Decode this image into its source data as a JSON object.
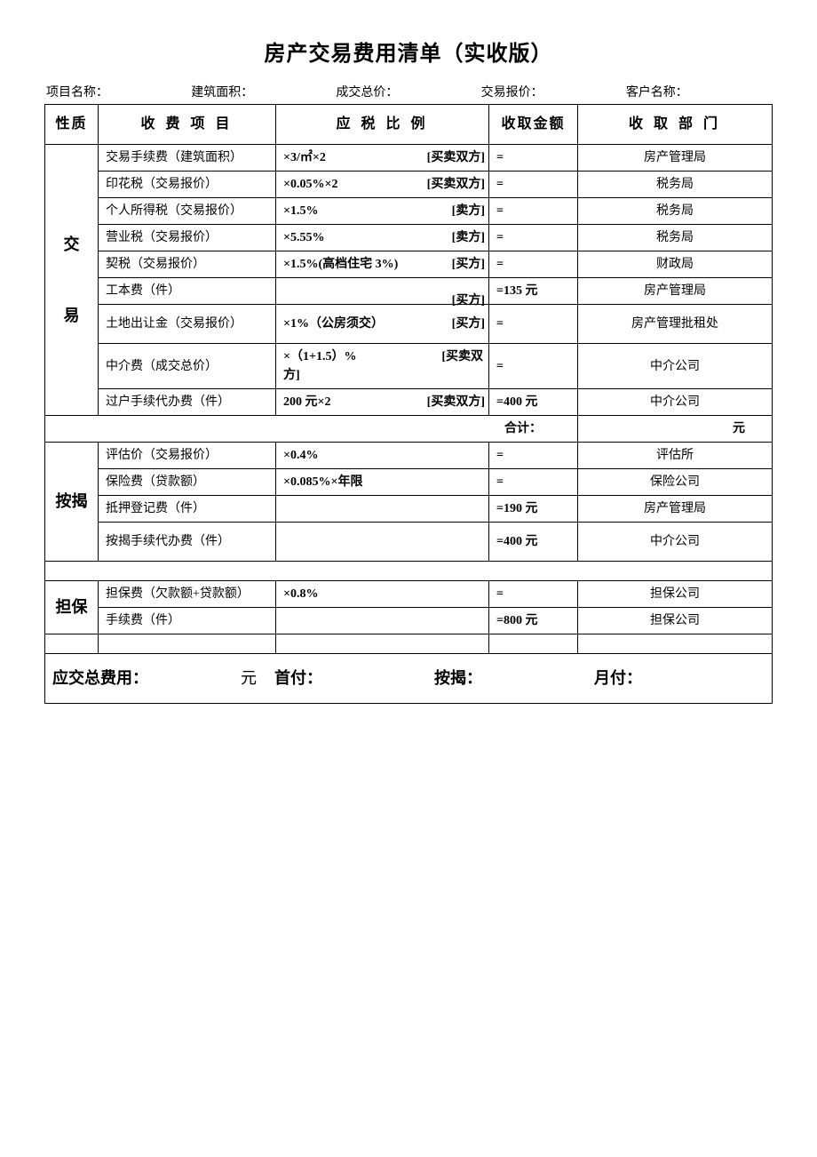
{
  "title": "房产交易费用清单（实收版）",
  "info": {
    "project_label": "项目名称：",
    "area_label": "建筑面积：",
    "deal_price_label": "成交总价：",
    "quote_price_label": "交易报价：",
    "customer_label": "客户名称："
  },
  "headers": {
    "nature": "性质",
    "item": "收 费 项 目",
    "rate": "应 税 比 例",
    "amount": "收取金额",
    "dept": "收 取 部 门"
  },
  "sections": {
    "jiaoyi": {
      "label_top": "交",
      "label_bottom": "易",
      "rows": [
        {
          "item": "交易手续费（建筑面积）",
          "rate": "×3/㎡×2",
          "party": "[买卖双方]",
          "amount": "=",
          "dept": "房产管理局"
        },
        {
          "item": "印花税（交易报价）",
          "rate": "×0.05%×2",
          "party": "[买卖双方]",
          "amount": "=",
          "dept": "税务局"
        },
        {
          "item": "个人所得税（交易报价）",
          "rate": "×1.5%",
          "party": "[卖方]",
          "amount": "=",
          "dept": "税务局"
        },
        {
          "item": "营业税（交易报价）",
          "rate": "×5.55%",
          "party": "[卖方]",
          "amount": "=",
          "dept": "税务局"
        },
        {
          "item": "契税（交易报价）",
          "rate": "×1.5%(高档住宅 3%)",
          "party": "[买方]",
          "amount": "=",
          "dept": "财政局"
        },
        {
          "item": "工本费（件）",
          "rate": "",
          "party": "[买方]",
          "amount": "=135 元",
          "dept": "房产管理局"
        },
        {
          "item": "土地出让金（交易报价）",
          "rate": "×1%（公房须交）",
          "party": "[买方]",
          "amount": "=",
          "dept": "房产管理批租处",
          "tall": true
        },
        {
          "item": "中介费（成交总价）",
          "rate": "×（1+1.5）%",
          "party": "[买卖双方]",
          "amount": "=",
          "dept": "中介公司",
          "tall": true,
          "wrap": true
        },
        {
          "item": "过户手续代办费（件）",
          "rate": "200 元×2",
          "party": "[买卖双方]",
          "amount": "=400 元",
          "dept": "中介公司"
        }
      ],
      "subtotal_label": "合计：",
      "subtotal_unit": "元"
    },
    "anjie": {
      "label": "按揭",
      "rows": [
        {
          "item": "评估价（交易报价）",
          "rate": "×0.4%",
          "party": "",
          "amount": "=",
          "dept": "评估所"
        },
        {
          "item": "保险费（贷款额）",
          "rate": "×0.085%×年限",
          "party": "",
          "amount": "=",
          "dept": "保险公司"
        },
        {
          "item": "抵押登记费（件）",
          "rate": "",
          "party": "",
          "amount": "=190 元",
          "dept": "房产管理局"
        },
        {
          "item": "按揭手续代办费（件）",
          "rate": "",
          "party": "",
          "amount": "=400 元",
          "dept": "中介公司",
          "tall": true
        }
      ]
    },
    "danbao": {
      "label": "担保",
      "rows": [
        {
          "item": "担保费（欠款额+贷款额）",
          "rate": "×0.8%",
          "party": "",
          "amount": "=",
          "dept": "担保公司"
        },
        {
          "item": "手续费（件）",
          "rate": "",
          "party": "",
          "amount": "=800 元",
          "dept": "担保公司"
        }
      ]
    }
  },
  "footer": {
    "total_label": "应交总费用：",
    "total_unit": "元",
    "down_label": "首付：",
    "mort_label": "按揭：",
    "month_label": "月付："
  },
  "style": {
    "page_bg": "#ffffff",
    "text_color": "#000000",
    "border_color": "#000000",
    "title_fontsize": 24,
    "header_fontsize": 16,
    "body_fontsize": 14,
    "footer_fontsize": 18
  }
}
